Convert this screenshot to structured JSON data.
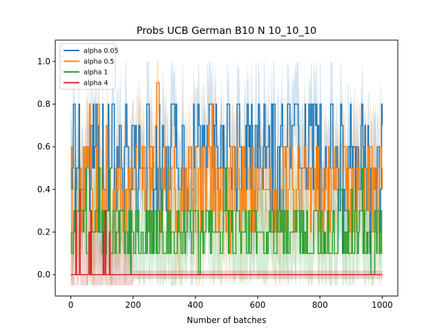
{
  "chart_data": {
    "type": "line",
    "title": "Probs UCB German B10 N 10_10_10",
    "xlabel": "Number of batches",
    "ylabel": "",
    "xlim": [
      -50,
      1050
    ],
    "ylim": [
      -0.1,
      1.1
    ],
    "xticks": [
      0,
      200,
      400,
      600,
      800,
      1000
    ],
    "yticks": [
      0.0,
      0.2,
      0.4,
      0.6,
      0.8,
      1.0
    ],
    "x_range": [
      0,
      1000
    ],
    "grid": false,
    "legend_position": "top-left",
    "band": "shaded min-max band around each series",
    "series": [
      {
        "name": "alpha 0.05",
        "color": "#1f77b4",
        "levels": [
          0.3,
          0.4,
          0.5,
          0.6,
          0.7,
          0.8
        ],
        "range": [
          0.1,
          0.8
        ],
        "band_range": [
          0.0,
          1.0
        ]
      },
      {
        "name": "alpha 0.5",
        "color": "#ff7f0e",
        "levels": [
          0.2,
          0.3,
          0.4,
          0.5,
          0.6
        ],
        "range": [
          0.0,
          0.9
        ],
        "band_range": [
          -0.05,
          1.0
        ]
      },
      {
        "name": "alpha 1",
        "color": "#2ca02c",
        "levels": [
          0.1,
          0.2,
          0.3
        ],
        "range": [
          0.0,
          0.5
        ],
        "band_range": [
          -0.05,
          0.65
        ]
      },
      {
        "name": "alpha 4",
        "color": "#d62728",
        "levels": [
          0.0
        ],
        "range": [
          0.0,
          0.4
        ],
        "band_range": [
          -0.05,
          0.4
        ],
        "settles_at": 0.0,
        "settles_after_x": 200
      }
    ]
  }
}
